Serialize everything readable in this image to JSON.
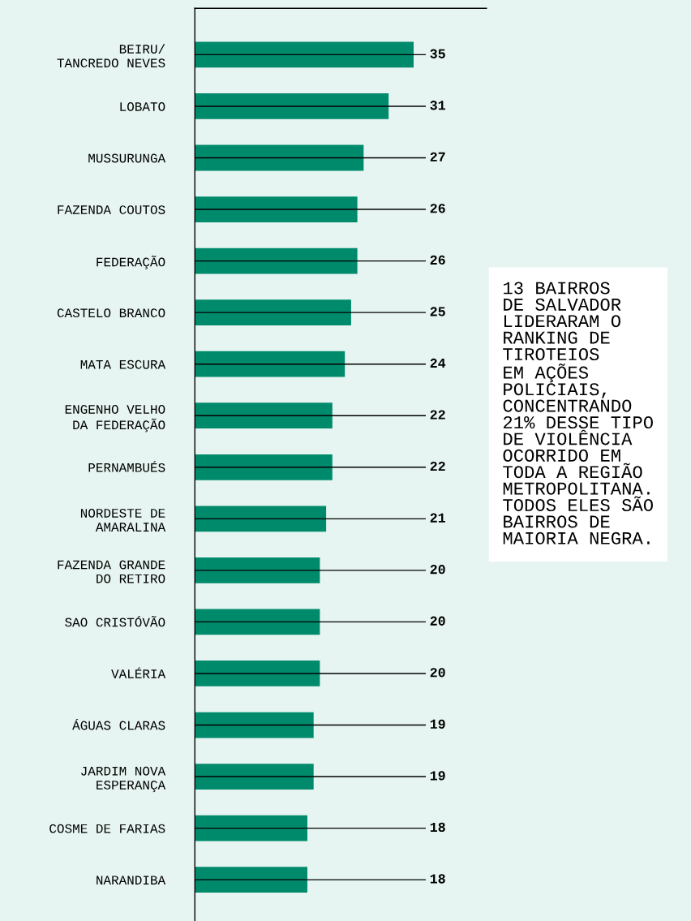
{
  "chart_data": {
    "type": "bar",
    "orientation": "horizontal",
    "data_labels": true,
    "grid": false,
    "legend": false,
    "tick_labels": "y",
    "categories": [
      "BEIRU/\nTANCREDO NEVES",
      "LOBATO",
      "MUSSURUNGA",
      "FAZENDA COUTOS",
      "FEDERAÇÃO",
      "CASTELO BRANCO",
      "MATA ESCURA",
      "ENGENHO VELHO\nDA FEDERAÇÃO",
      "PERNAMBUÉS",
      "NORDESTE DE\nAMARALINA",
      "FAZENDA GRANDE\nDO RETIRO",
      "SAO CRISTÓVÃO",
      "VALÉRIA",
      "ÁGUAS CLARAS",
      "JARDIM NOVA\nESPERANÇA",
      "COSME DE FARIAS",
      "NARANDIBA"
    ],
    "values": [
      35,
      31,
      27,
      26,
      26,
      25,
      24,
      22,
      22,
      21,
      20,
      20,
      20,
      19,
      19,
      18,
      18
    ],
    "color": "#008a6c",
    "annotations": [
      "13 BAIRROS\nDE SALVADOR\nLIDERARAM O\nRANKING DE\nTIROTEIOS\nEM AÇÕES\nPOLICIAIS,\nCONCENTRANDO\n21% DESSE TIPO\nDE VIOLÊNCIA\nOCORRIDO EM\nTODA A REGIÃO\nMETROPOLITANA.\nTODOS ELES SÃO\nBAIRROS DE\nMAIORIA NEGRA."
    ]
  }
}
